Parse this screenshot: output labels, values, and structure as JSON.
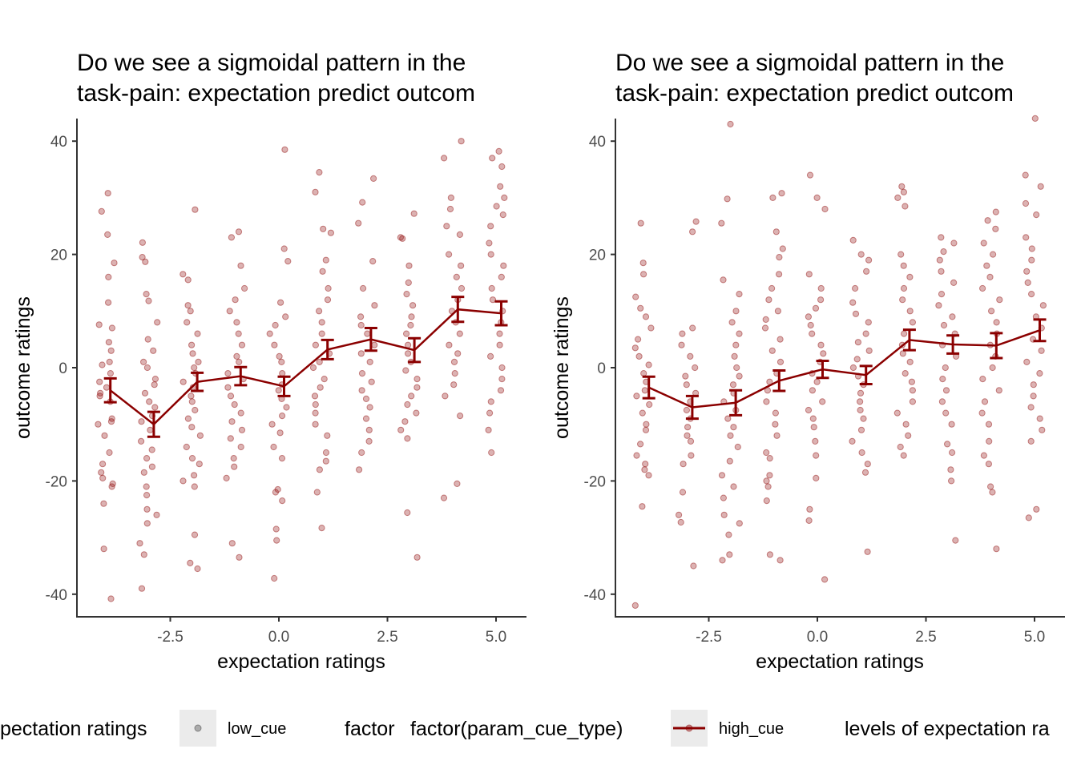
{
  "chart_data": [
    {
      "type": "scatter",
      "title": "Do we see a sigmoidal pattern in the\ntask-pain: expectation predict outcom",
      "xlabel": "expectation ratings",
      "ylabel": "outcome ratings",
      "xticks": [
        -2.5,
        0.0,
        2.5,
        5.0
      ],
      "xtick_labels": [
        "-2.5",
        "0.0",
        "2.5",
        "5.0"
      ],
      "yticks": [
        -40,
        -20,
        0,
        20,
        40
      ],
      "ytick_labels": [
        "-40",
        "-20",
        "0",
        "20",
        "40"
      ],
      "xlim": [
        -4.5,
        5.7
      ],
      "ylim": [
        -44,
        44
      ],
      "grid": false,
      "point_color": "#8B0000",
      "series": [
        {
          "name": "high_cue",
          "type": "line",
          "color": "#8B0000",
          "x": [
            -4,
            -3,
            -2,
            -1,
            0,
            1,
            2,
            3,
            4,
            5
          ],
          "y": [
            -4,
            -10,
            -2.5,
            -1.5,
            -3.3,
            3.2,
            5,
            3.1,
            10.3,
            9.6
          ],
          "err": [
            2.1,
            2.2,
            1.6,
            1.6,
            1.7,
            1.7,
            2.0,
            2.1,
            2.2,
            2.1
          ]
        }
      ],
      "points": {
        "x": [
          -4,
          -3,
          -2,
          -1,
          0,
          1,
          2,
          3,
          4,
          5
        ],
        "values": [
          [
            30.8,
            27.6,
            23.5,
            18.5,
            16,
            11.5,
            7.6,
            7,
            4.5,
            3,
            1,
            0.5,
            -1,
            -2.5,
            -3.5,
            -4.5,
            -5,
            -6,
            -9,
            -9.5,
            -10,
            -12,
            -15,
            -17,
            -18.5,
            -19.5,
            -20.5,
            -21,
            -24,
            -32,
            -40.8
          ],
          [
            22.1,
            19.5,
            18.7,
            13,
            11.8,
            8,
            5,
            3,
            1,
            0,
            -2,
            -3,
            -4.5,
            -6,
            -7,
            -8.5,
            -9.5,
            -11,
            -13,
            -14.5,
            -16,
            -17.5,
            -18.5,
            -21,
            -22.5,
            -25,
            -26,
            -27.5,
            -31,
            -33,
            -39
          ],
          [
            27.9,
            16.5,
            15.5,
            11,
            10,
            8,
            6,
            4,
            2.5,
            1,
            0,
            -1,
            -2.5,
            -3.5,
            -5,
            -6,
            -7.5,
            -9,
            -10.5,
            -12,
            -14,
            -16,
            -17,
            -19,
            -20,
            -21,
            -29.5,
            -34.5,
            -35.5
          ],
          [
            24,
            23,
            18,
            14,
            12,
            10,
            8,
            6,
            4,
            2,
            1,
            -1,
            -2,
            -3.5,
            -5,
            -6.5,
            -8,
            -9.5,
            -11,
            -12.5,
            -14,
            -16,
            -17.5,
            -19.5,
            -31,
            -33.5
          ],
          [
            38.5,
            21,
            18.8,
            11.5,
            9,
            7.5,
            6,
            4,
            2,
            1,
            -1,
            -3,
            -4,
            -5.5,
            -7,
            -8.5,
            -10,
            -11.5,
            -14,
            -16,
            -21.5,
            -22,
            -23.5,
            -28.5,
            -30.5,
            -37.2
          ],
          [
            34.5,
            31,
            24.5,
            23.8,
            19,
            17,
            14,
            12,
            10,
            8,
            6,
            4,
            2.5,
            1,
            0,
            -2,
            -3.5,
            -5,
            -6.5,
            -8,
            -10,
            -12,
            -15,
            -16.5,
            -18,
            -22,
            -28.3
          ],
          [
            33.4,
            29.2,
            25.5,
            18.8,
            14,
            11,
            9,
            7.5,
            6,
            4,
            2.5,
            1,
            -1,
            -2.5,
            -4,
            -5.5,
            -7,
            -9,
            -11,
            -13,
            -15,
            -18
          ],
          [
            27.2,
            23,
            22.8,
            18,
            15,
            13,
            11,
            9,
            7.5,
            6,
            4,
            2.5,
            1,
            -0.5,
            -2,
            -3.5,
            -5,
            -6.5,
            -8,
            -9.5,
            -11,
            -12.5,
            -25.6,
            -33.5
          ],
          [
            40,
            37,
            30,
            28,
            25,
            23.5,
            20,
            18,
            16,
            14,
            12,
            10,
            8,
            6,
            4,
            2.5,
            1,
            -1,
            -3,
            -5,
            -8.5,
            -20.5,
            -23
          ],
          [
            38.2,
            37,
            35.5,
            32,
            30,
            28.5,
            27,
            25,
            22,
            20,
            18,
            16,
            14,
            12,
            10,
            8,
            6,
            4,
            2,
            0,
            -2,
            -4,
            -6,
            -8,
            -11,
            -15
          ]
        ]
      }
    },
    {
      "type": "scatter",
      "title": "Do we see a sigmoidal pattern in the\ntask-pain: expectation predict outcom",
      "xlabel": "expectation ratings",
      "ylabel": "outcome ratings",
      "xticks": [
        -2.5,
        0.0,
        2.5,
        5.0
      ],
      "xtick_labels": [
        "-2.5",
        "0.0",
        "2.5",
        "5.0"
      ],
      "yticks": [
        -40,
        -20,
        0,
        20,
        40
      ],
      "ytick_labels": [
        "-40",
        "-20",
        "0",
        "20",
        "40"
      ],
      "xlim": [
        -4.5,
        5.7
      ],
      "ylim": [
        -44,
        44
      ],
      "grid": false,
      "point_color": "#8B0000",
      "series": [
        {
          "name": "high_cue",
          "type": "line",
          "color": "#8B0000",
          "x": [
            -4,
            -3,
            -2,
            -1,
            0,
            1,
            2,
            3,
            4,
            5
          ],
          "y": [
            -3.5,
            -7,
            -6.2,
            -2.3,
            -0.3,
            -1.3,
            4.9,
            4.1,
            3.9,
            6.6
          ],
          "err": [
            1.9,
            2.0,
            2.2,
            1.8,
            1.5,
            1.6,
            1.8,
            1.6,
            2.2,
            1.9
          ]
        }
      ],
      "points": {
        "x": [
          -4,
          -3,
          -2,
          -1,
          0,
          1,
          2,
          3,
          4,
          5
        ],
        "values": [
          [
            25.5,
            18.5,
            16.5,
            12.5,
            10.5,
            9,
            7,
            5,
            3.5,
            2,
            0.5,
            -1,
            -2.5,
            -4,
            -5,
            -6.5,
            -8,
            -10,
            -11,
            -13.5,
            -15.5,
            -17,
            -18,
            -19,
            -24.5,
            -42
          ],
          [
            25.8,
            24,
            7,
            6,
            4,
            2,
            0,
            -1.5,
            -3,
            -4.5,
            -6,
            -7.5,
            -9,
            -10.5,
            -12,
            -13,
            -15.5,
            -17,
            -22,
            -26,
            -27.3,
            -35
          ],
          [
            43,
            29.8,
            25.5,
            15.5,
            13,
            10,
            8,
            6,
            4,
            2,
            0,
            -1.5,
            -3,
            -4.5,
            -6,
            -7.5,
            -9,
            -10.5,
            -12,
            -14,
            -16.5,
            -19,
            -21,
            -23,
            -26,
            -27.5,
            -29.5,
            -33,
            -34
          ],
          [
            30.8,
            30,
            24,
            21,
            19.5,
            16.5,
            14,
            12,
            10,
            8.5,
            7,
            5,
            3,
            1,
            -1,
            -2.5,
            -4,
            -6,
            -8,
            -10,
            -12,
            -15,
            -16,
            -19,
            -20,
            -21,
            -23.5,
            -33,
            -34
          ],
          [
            34,
            30,
            28,
            16.5,
            14,
            12,
            10.5,
            9,
            7.5,
            6,
            4,
            2.5,
            1,
            -1,
            -2.5,
            -4,
            -6,
            -7.5,
            -9,
            -10.5,
            -13,
            -15.5,
            -19.5,
            -25,
            -27,
            -37.4
          ],
          [
            22.5,
            20,
            19,
            17,
            14,
            11.5,
            9.5,
            8,
            6,
            4.5,
            3,
            1.5,
            0,
            -1.5,
            -3,
            -4.5,
            -6,
            -7.5,
            -9,
            -11,
            -13,
            -15,
            -17,
            -18.5,
            -32.5
          ],
          [
            32,
            31,
            30,
            28.5,
            20,
            18,
            16,
            14,
            12,
            10,
            8,
            6,
            4,
            2.5,
            1,
            -1,
            -2.5,
            -4,
            -6,
            -8,
            -10,
            -12,
            -14,
            -15.5
          ],
          [
            23,
            22,
            20.5,
            19,
            17,
            15,
            13,
            11,
            9,
            7.5,
            6,
            4,
            2,
            0,
            -2,
            -4,
            -6,
            -8,
            -10,
            -13.5,
            -15,
            -18,
            -20,
            -30.5
          ],
          [
            27.5,
            26,
            24.5,
            22,
            20,
            18,
            16,
            14,
            12,
            10,
            8,
            6,
            4,
            2,
            0,
            -2,
            -4,
            -6,
            -8,
            -10,
            -13,
            -15.5,
            -17,
            -21,
            -22,
            -32
          ],
          [
            44,
            34,
            32,
            29,
            27,
            23,
            21,
            19,
            17,
            15,
            13,
            11,
            9,
            7,
            5,
            3,
            1,
            -1,
            -3,
            -5,
            -7,
            -9,
            -11,
            -13,
            -25,
            -26.5
          ]
        ]
      }
    }
  ],
  "legend": {
    "left_title_clipped": "pectation ratings",
    "low_cue_label": "low_cue",
    "clipped_title": "factor",
    "main_title": "factor(param_cue_type)",
    "high_cue_label": "high_cue",
    "right_title_clipped": "levels of expectation ra"
  }
}
